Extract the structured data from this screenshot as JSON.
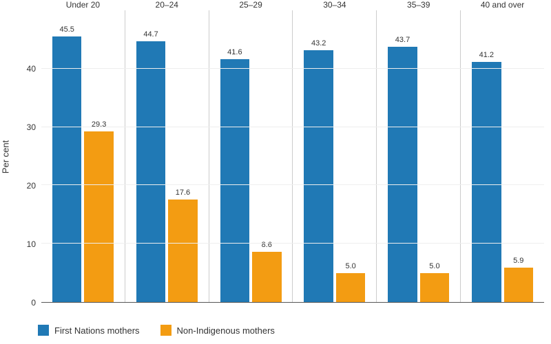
{
  "chart": {
    "type": "grouped-bar-panels",
    "ylabel": "Per cent",
    "ylim": [
      0,
      50
    ],
    "yticks": [
      0,
      10,
      20,
      30,
      40
    ],
    "background_color": "#ffffff",
    "grid_color": "#eeeeee",
    "axis_color": "#555555",
    "panel_border_color": "#cccccc",
    "label_fontsize": 12,
    "series": [
      {
        "name": "First Nations mothers",
        "color": "#2079b5"
      },
      {
        "name": "Non-Indigenous mothers",
        "color": "#f39c12"
      }
    ],
    "categories": [
      {
        "label": "Under 20",
        "values": [
          45.5,
          29.3
        ]
      },
      {
        "label": "20–24",
        "values": [
          44.7,
          17.6
        ]
      },
      {
        "label": "25–29",
        "values": [
          41.6,
          8.6
        ]
      },
      {
        "label": "30–34",
        "values": [
          43.2,
          5.0
        ]
      },
      {
        "label": "35–39",
        "values": [
          43.7,
          5.0
        ]
      },
      {
        "label": "40 and over",
        "values": [
          41.2,
          5.9
        ]
      }
    ]
  }
}
